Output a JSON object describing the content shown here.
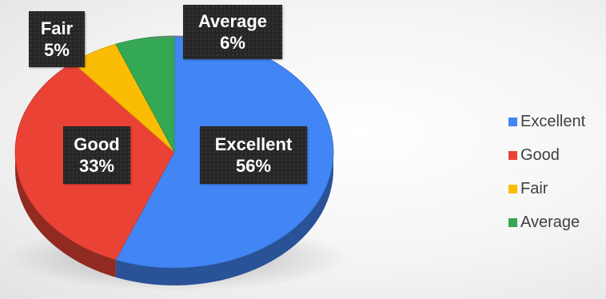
{
  "chart_data": {
    "type": "pie",
    "style": "3d",
    "categories": [
      "Excellent",
      "Good",
      "Fair",
      "Average"
    ],
    "values": [
      56,
      33,
      5,
      6
    ],
    "value_labels": [
      "56%",
      "33%",
      "5%",
      "6%"
    ],
    "colors": [
      "#4285F4",
      "#EA4335",
      "#FBBC04",
      "#34A853"
    ],
    "legend": {
      "position": "right",
      "entries": [
        "Excellent",
        "Good",
        "Fair",
        "Average"
      ]
    }
  }
}
